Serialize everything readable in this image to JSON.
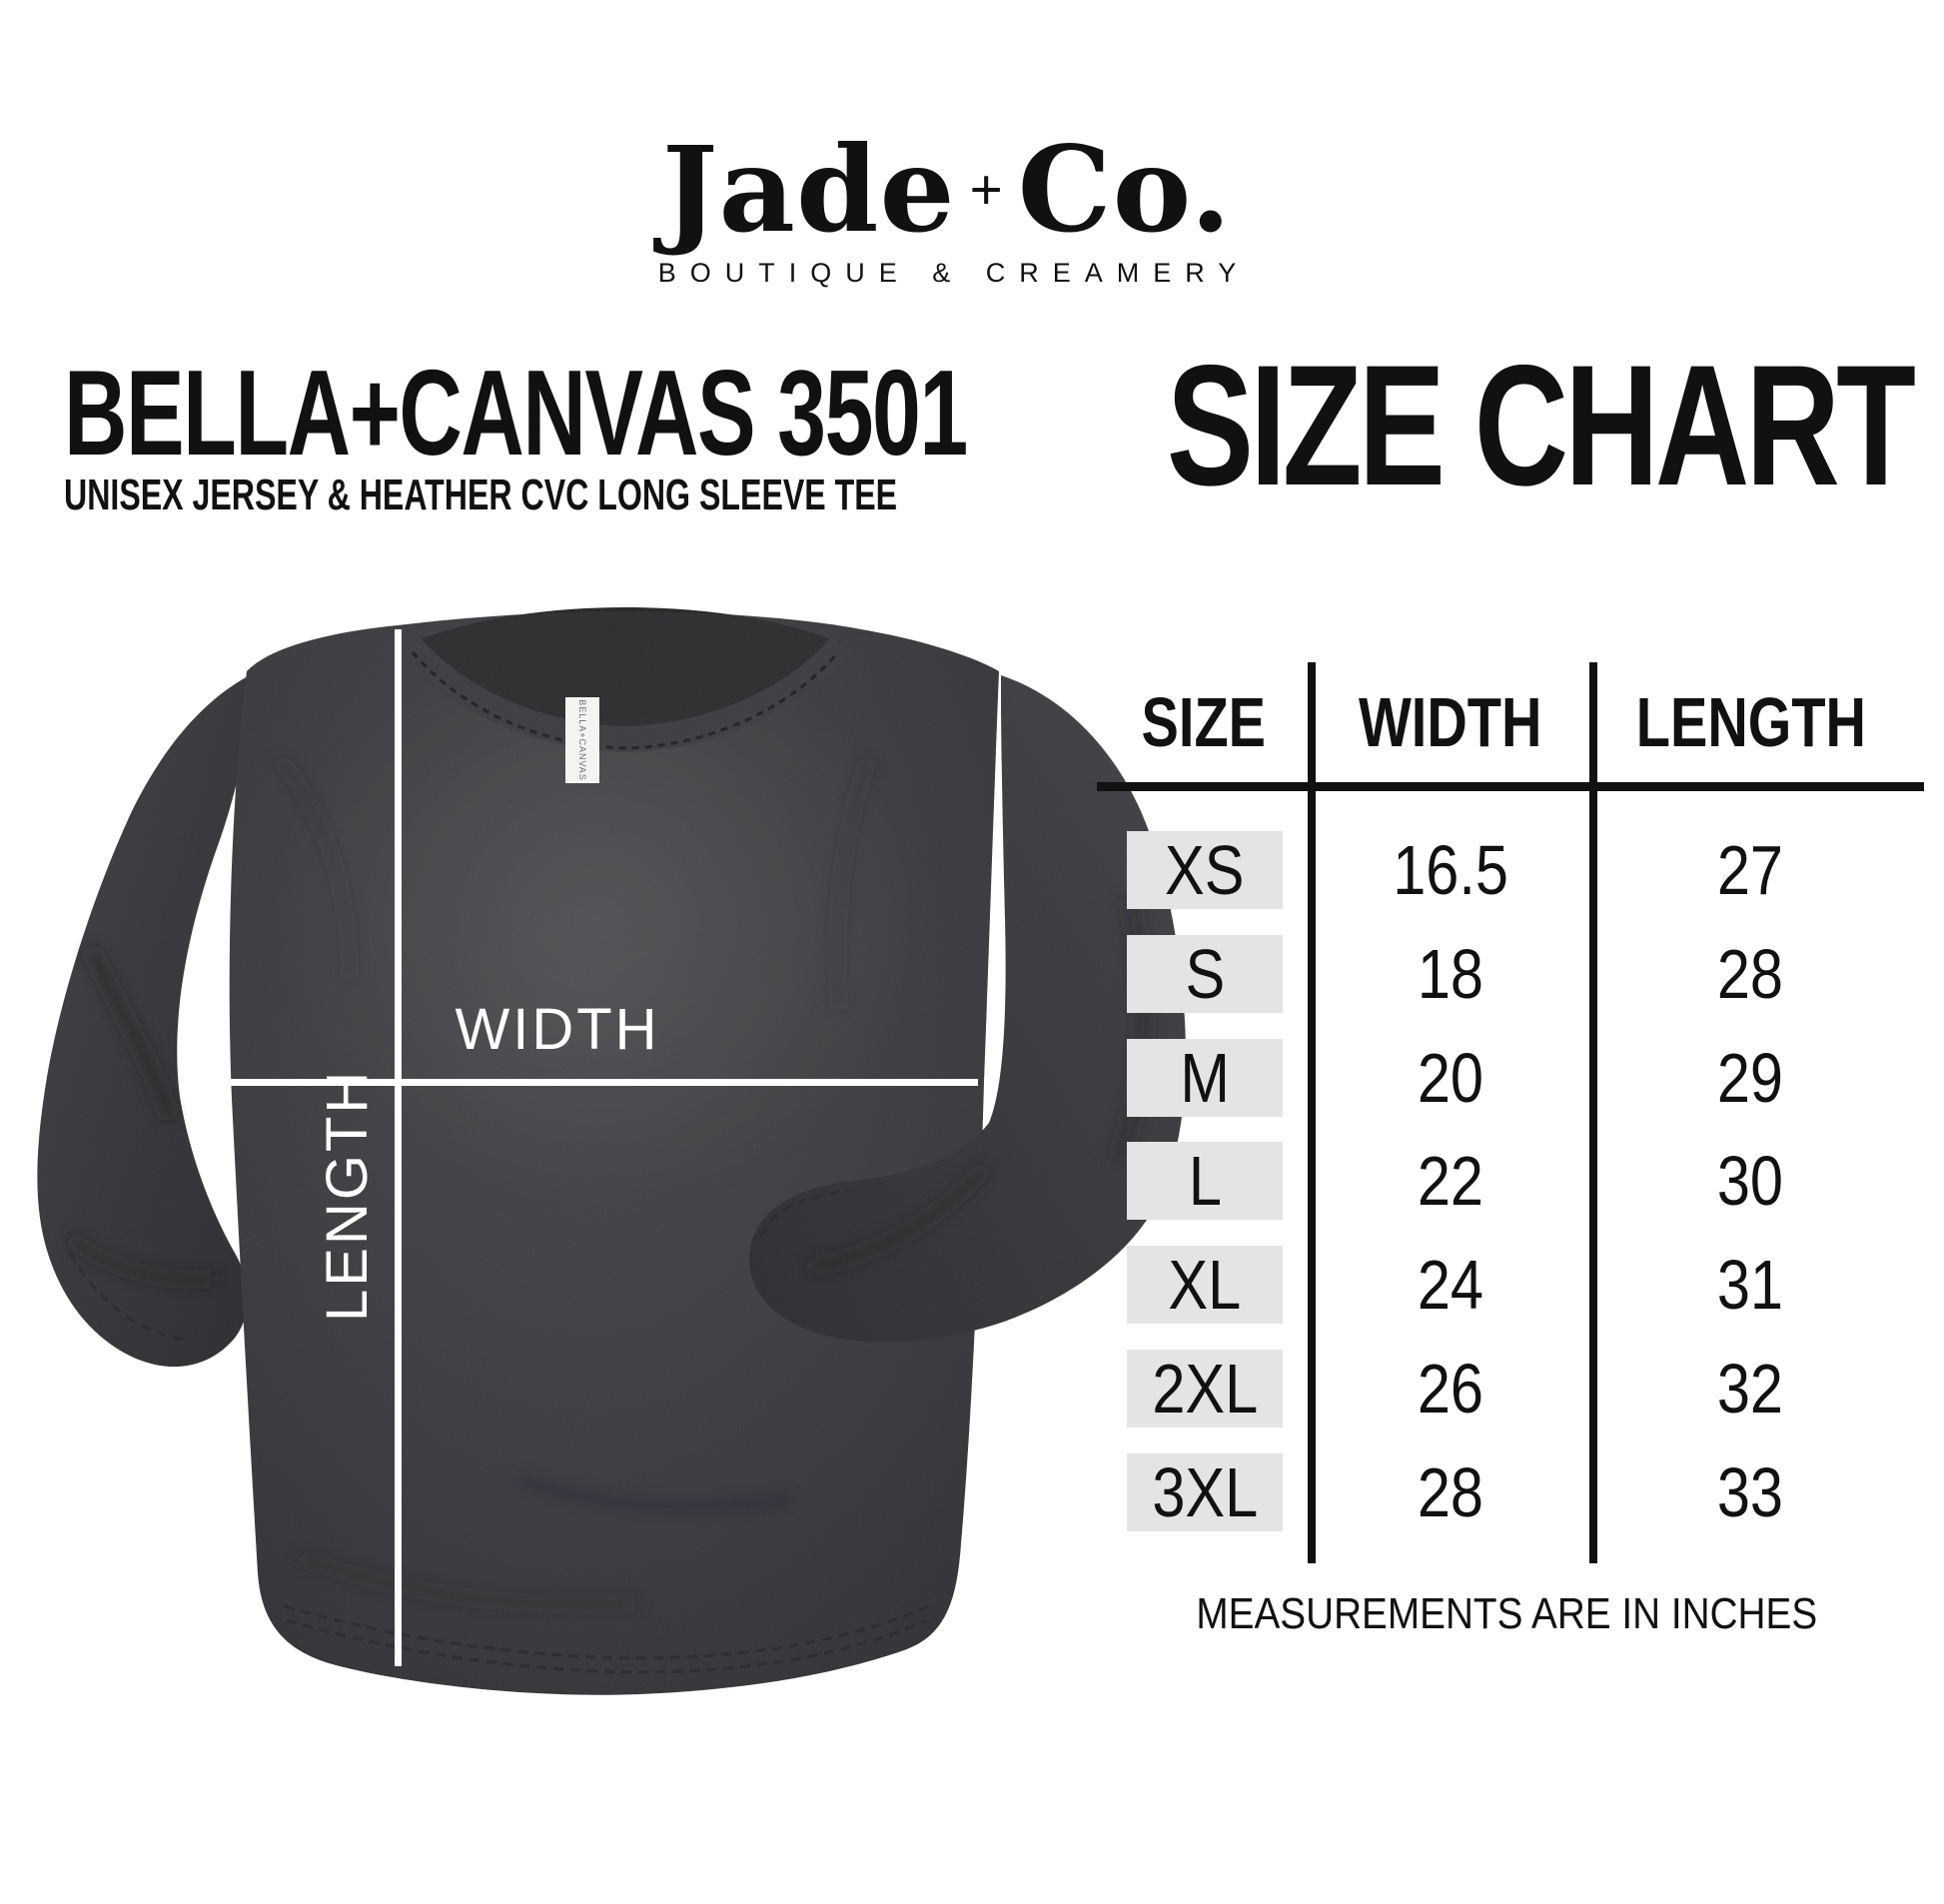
{
  "brand": {
    "name_jade": "Jade",
    "plus": "+",
    "name_co": "Co.",
    "tagline": "BOUTIQUE & CREAMERY"
  },
  "product": {
    "title": "BELLA+CANVAS 3501",
    "subtitle": "UNISEX JERSEY & HEATHER CVC LONG SLEEVE TEE"
  },
  "page_title": "SIZE CHART",
  "diagram": {
    "width_label": "WIDTH",
    "length_label": "LENGTH",
    "tag_text": "BELLA+CANVAS"
  },
  "chart_data": {
    "type": "table",
    "title": "SIZE CHART",
    "columns": [
      "SIZE",
      "WIDTH",
      "LENGTH"
    ],
    "rows": [
      [
        "XS",
        "16.5",
        "27"
      ],
      [
        "S",
        "18",
        "28"
      ],
      [
        "M",
        "20",
        "29"
      ],
      [
        "L",
        "22",
        "30"
      ],
      [
        "XL",
        "24",
        "31"
      ],
      [
        "2XL",
        "26",
        "32"
      ],
      [
        "3XL",
        "28",
        "33"
      ]
    ],
    "units_note": "MEASUREMENTS ARE IN INCHES"
  },
  "footer": {
    "note": "MEASUREMENTS ARE IN INCHES"
  },
  "colors": {
    "shirt_base": "#3a3a3d",
    "shirt_dark": "#2c2c2f",
    "row_label_bg": "#e4e4e4",
    "ink": "#111111",
    "measure_line": "#ffffff"
  }
}
